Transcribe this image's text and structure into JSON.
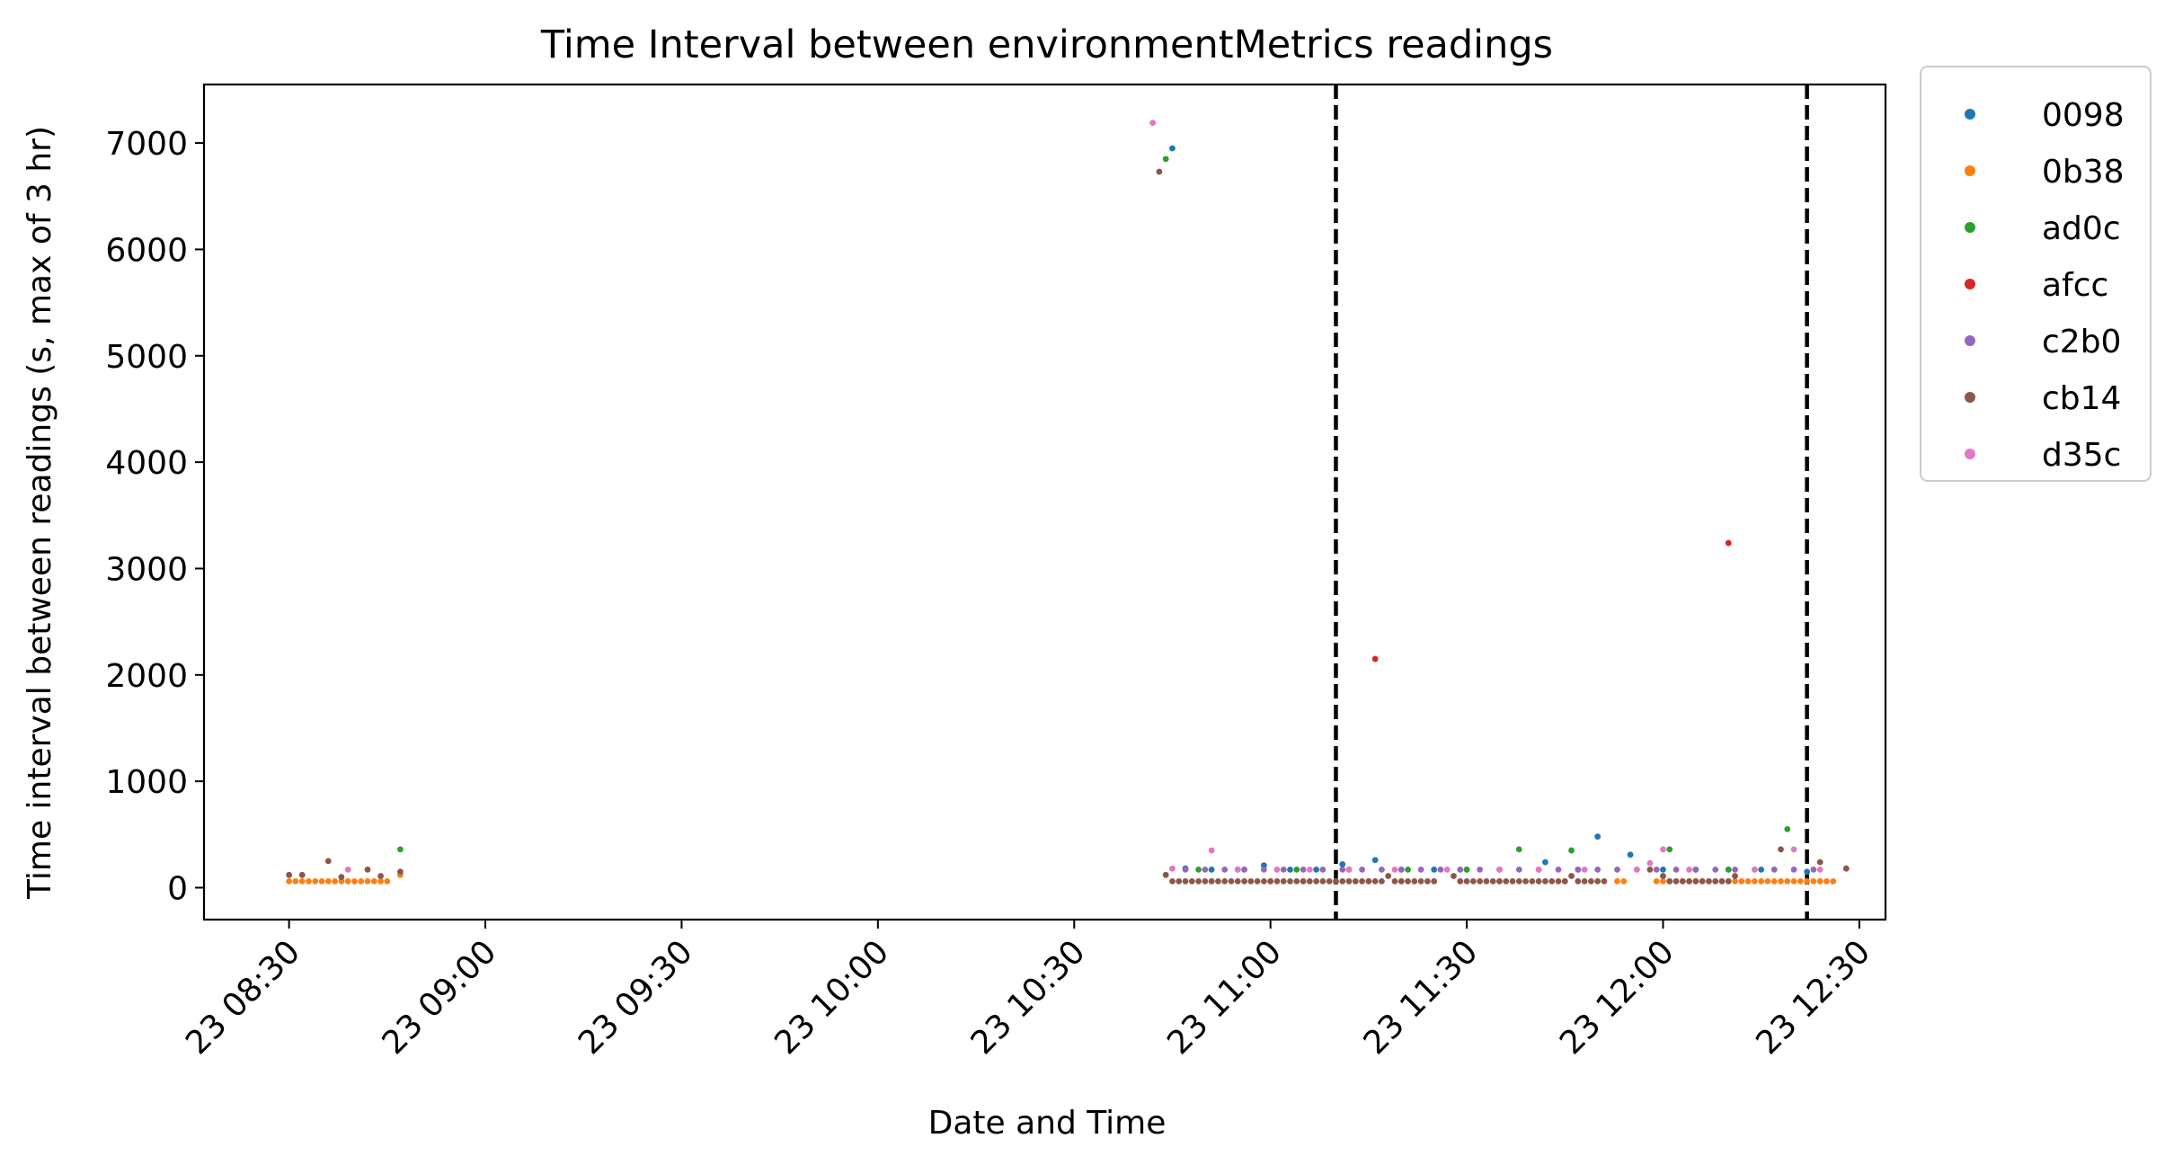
{
  "chart_data": {
    "type": "scatter",
    "title": "Time Interval between environmentMetrics readings",
    "xlabel": "Date and Time",
    "ylabel": "Time interval between readings (s, max of 3 hr)",
    "xlim": [
      "08:17",
      "12:34"
    ],
    "ylim": [
      -300,
      7550
    ],
    "x_ticks": [
      "23 08:30",
      "23 09:00",
      "23 09:30",
      "23 10:00",
      "23 10:30",
      "23 11:00",
      "23 11:30",
      "23 12:00",
      "23 12:30"
    ],
    "y_ticks": [
      0,
      1000,
      2000,
      3000,
      4000,
      5000,
      6000,
      7000
    ],
    "vlines": [
      "11:10",
      "12:22"
    ],
    "legend_position": "outside-right",
    "series": [
      {
        "name": "0098",
        "color": "#1f77b4",
        "points": [
          [
            "10:45",
            6950
          ],
          [
            "10:47",
            180
          ],
          [
            "10:51",
            170
          ],
          [
            "10:55",
            170
          ],
          [
            "10:59",
            210
          ],
          [
            "11:03",
            170
          ],
          [
            "11:07",
            170
          ],
          [
            "11:11",
            220
          ],
          [
            "11:16",
            260
          ],
          [
            "11:20",
            170
          ],
          [
            "11:25",
            170
          ],
          [
            "11:30",
            170
          ],
          [
            "11:35",
            170
          ],
          [
            "11:42",
            240
          ],
          [
            "11:47",
            170
          ],
          [
            "11:50",
            480
          ],
          [
            "11:55",
            310
          ],
          [
            "12:00",
            170
          ],
          [
            "12:05",
            170
          ],
          [
            "12:10",
            170
          ],
          [
            "12:15",
            170
          ],
          [
            "12:22",
            150
          ]
        ]
      },
      {
        "name": "0b38",
        "color": "#ff7f0e",
        "points": [
          [
            "08:30",
            60
          ],
          [
            "08:31",
            60
          ],
          [
            "08:32",
            60
          ],
          [
            "08:33",
            60
          ],
          [
            "08:34",
            60
          ],
          [
            "08:35",
            60
          ],
          [
            "08:36",
            60
          ],
          [
            "08:37",
            60
          ],
          [
            "08:38",
            60
          ],
          [
            "08:39",
            60
          ],
          [
            "08:40",
            60
          ],
          [
            "08:41",
            60
          ],
          [
            "08:42",
            60
          ],
          [
            "08:43",
            60
          ],
          [
            "08:44",
            60
          ],
          [
            "08:45",
            60
          ],
          [
            "08:47",
            120
          ],
          [
            "10:51",
            60
          ],
          [
            "11:00",
            60
          ],
          [
            "11:05",
            60
          ],
          [
            "11:10",
            60
          ],
          [
            "11:15",
            60
          ],
          [
            "11:20",
            60
          ],
          [
            "11:25",
            60
          ],
          [
            "11:35",
            60
          ],
          [
            "11:45",
            60
          ],
          [
            "11:53",
            60
          ],
          [
            "11:54",
            60
          ],
          [
            "11:59",
            60
          ],
          [
            "12:00",
            60
          ],
          [
            "12:01",
            60
          ],
          [
            "12:02",
            60
          ],
          [
            "12:03",
            60
          ],
          [
            "12:04",
            60
          ],
          [
            "12:05",
            60
          ],
          [
            "12:06",
            60
          ],
          [
            "12:07",
            60
          ],
          [
            "12:08",
            60
          ],
          [
            "12:09",
            60
          ],
          [
            "12:10",
            60
          ],
          [
            "12:11",
            60
          ],
          [
            "12:12",
            60
          ],
          [
            "12:13",
            60
          ],
          [
            "12:14",
            60
          ],
          [
            "12:15",
            60
          ],
          [
            "12:16",
            60
          ],
          [
            "12:17",
            60
          ],
          [
            "12:18",
            60
          ],
          [
            "12:19",
            60
          ],
          [
            "12:20",
            60
          ],
          [
            "12:21",
            60
          ],
          [
            "12:22",
            60
          ],
          [
            "12:23",
            60
          ],
          [
            "12:24",
            60
          ],
          [
            "12:25",
            60
          ],
          [
            "12:26",
            60
          ]
        ]
      },
      {
        "name": "ad0c",
        "color": "#2ca02c",
        "points": [
          [
            "08:47",
            360
          ],
          [
            "10:44",
            6850
          ],
          [
            "10:49",
            170
          ],
          [
            "10:56",
            170
          ],
          [
            "11:04",
            170
          ],
          [
            "11:12",
            170
          ],
          [
            "11:21",
            170
          ],
          [
            "11:30",
            170
          ],
          [
            "11:38",
            360
          ],
          [
            "11:46",
            350
          ],
          [
            "12:01",
            360
          ],
          [
            "12:10",
            170
          ],
          [
            "12:19",
            550
          ]
        ]
      },
      {
        "name": "afcc",
        "color": "#d62728",
        "points": [
          [
            "11:16",
            2150
          ],
          [
            "12:10",
            3240
          ]
        ]
      },
      {
        "name": "c2b0",
        "color": "#9467bd",
        "points": [
          [
            "10:47",
            170
          ],
          [
            "10:50",
            170
          ],
          [
            "10:53",
            170
          ],
          [
            "10:56",
            170
          ],
          [
            "10:59",
            170
          ],
          [
            "11:02",
            170
          ],
          [
            "11:05",
            170
          ],
          [
            "11:08",
            170
          ],
          [
            "11:11",
            170
          ],
          [
            "11:14",
            170
          ],
          [
            "11:17",
            170
          ],
          [
            "11:20",
            170
          ],
          [
            "11:23",
            170
          ],
          [
            "11:26",
            170
          ],
          [
            "11:29",
            170
          ],
          [
            "11:32",
            170
          ],
          [
            "11:35",
            170
          ],
          [
            "11:38",
            170
          ],
          [
            "11:41",
            170
          ],
          [
            "11:44",
            170
          ],
          [
            "11:47",
            170
          ],
          [
            "11:50",
            170
          ],
          [
            "11:53",
            170
          ],
          [
            "11:56",
            170
          ],
          [
            "11:59",
            170
          ],
          [
            "12:02",
            170
          ],
          [
            "12:05",
            170
          ],
          [
            "12:08",
            170
          ],
          [
            "12:11",
            170
          ],
          [
            "12:14",
            170
          ],
          [
            "12:17",
            170
          ],
          [
            "12:20",
            170
          ],
          [
            "12:23",
            170
          ]
        ]
      },
      {
        "name": "cb14",
        "color": "#8c564b",
        "points": [
          [
            "08:30",
            120
          ],
          [
            "08:32",
            120
          ],
          [
            "08:36",
            250
          ],
          [
            "08:38",
            100
          ],
          [
            "08:42",
            170
          ],
          [
            "08:44",
            110
          ],
          [
            "08:47",
            150
          ],
          [
            "10:43",
            6730
          ],
          [
            "10:44",
            120
          ],
          [
            "10:45",
            60
          ],
          [
            "10:46",
            60
          ],
          [
            "10:47",
            60
          ],
          [
            "10:48",
            60
          ],
          [
            "10:49",
            60
          ],
          [
            "10:50",
            60
          ],
          [
            "10:51",
            60
          ],
          [
            "10:52",
            60
          ],
          [
            "10:53",
            60
          ],
          [
            "10:54",
            60
          ],
          [
            "10:55",
            60
          ],
          [
            "10:56",
            60
          ],
          [
            "10:57",
            60
          ],
          [
            "10:58",
            60
          ],
          [
            "10:59",
            60
          ],
          [
            "11:00",
            60
          ],
          [
            "11:01",
            60
          ],
          [
            "11:02",
            60
          ],
          [
            "11:03",
            60
          ],
          [
            "11:04",
            60
          ],
          [
            "11:05",
            60
          ],
          [
            "11:06",
            60
          ],
          [
            "11:07",
            60
          ],
          [
            "11:08",
            60
          ],
          [
            "11:09",
            60
          ],
          [
            "11:10",
            60
          ],
          [
            "11:11",
            60
          ],
          [
            "11:12",
            60
          ],
          [
            "11:13",
            60
          ],
          [
            "11:14",
            60
          ],
          [
            "11:15",
            60
          ],
          [
            "11:16",
            60
          ],
          [
            "11:17",
            60
          ],
          [
            "11:18",
            110
          ],
          [
            "11:19",
            60
          ],
          [
            "11:20",
            60
          ],
          [
            "11:21",
            60
          ],
          [
            "11:22",
            60
          ],
          [
            "11:23",
            60
          ],
          [
            "11:24",
            60
          ],
          [
            "11:25",
            60
          ],
          [
            "11:28",
            110
          ],
          [
            "11:29",
            60
          ],
          [
            "11:30",
            60
          ],
          [
            "11:31",
            60
          ],
          [
            "11:32",
            60
          ],
          [
            "11:33",
            60
          ],
          [
            "11:34",
            60
          ],
          [
            "11:35",
            60
          ],
          [
            "11:36",
            60
          ],
          [
            "11:37",
            60
          ],
          [
            "11:38",
            60
          ],
          [
            "11:39",
            60
          ],
          [
            "11:40",
            60
          ],
          [
            "11:41",
            60
          ],
          [
            "11:42",
            60
          ],
          [
            "11:43",
            60
          ],
          [
            "11:44",
            60
          ],
          [
            "11:45",
            60
          ],
          [
            "11:46",
            110
          ],
          [
            "11:47",
            60
          ],
          [
            "11:48",
            60
          ],
          [
            "11:49",
            60
          ],
          [
            "11:50",
            60
          ],
          [
            "11:51",
            60
          ],
          [
            "11:58",
            170
          ],
          [
            "12:00",
            110
          ],
          [
            "12:01",
            60
          ],
          [
            "12:02",
            60
          ],
          [
            "12:03",
            60
          ],
          [
            "12:04",
            60
          ],
          [
            "12:05",
            60
          ],
          [
            "12:06",
            60
          ],
          [
            "12:07",
            60
          ],
          [
            "12:08",
            60
          ],
          [
            "12:09",
            60
          ],
          [
            "12:10",
            60
          ],
          [
            "12:11",
            110
          ],
          [
            "12:18",
            360
          ],
          [
            "12:24",
            240
          ],
          [
            "12:28",
            180
          ]
        ]
      },
      {
        "name": "d35c",
        "color": "#e377c2",
        "points": [
          [
            "08:39",
            170
          ],
          [
            "10:42",
            7190
          ],
          [
            "10:45",
            180
          ],
          [
            "10:51",
            350
          ],
          [
            "10:55",
            170
          ],
          [
            "11:01",
            170
          ],
          [
            "11:06",
            170
          ],
          [
            "11:12",
            170
          ],
          [
            "11:19",
            170
          ],
          [
            "11:27",
            170
          ],
          [
            "11:35",
            170
          ],
          [
            "11:41",
            170
          ],
          [
            "11:48",
            170
          ],
          [
            "11:56",
            170
          ],
          [
            "11:58",
            230
          ],
          [
            "12:00",
            360
          ],
          [
            "12:04",
            170
          ],
          [
            "12:14",
            170
          ],
          [
            "12:20",
            360
          ],
          [
            "12:24",
            170
          ]
        ]
      }
    ]
  }
}
